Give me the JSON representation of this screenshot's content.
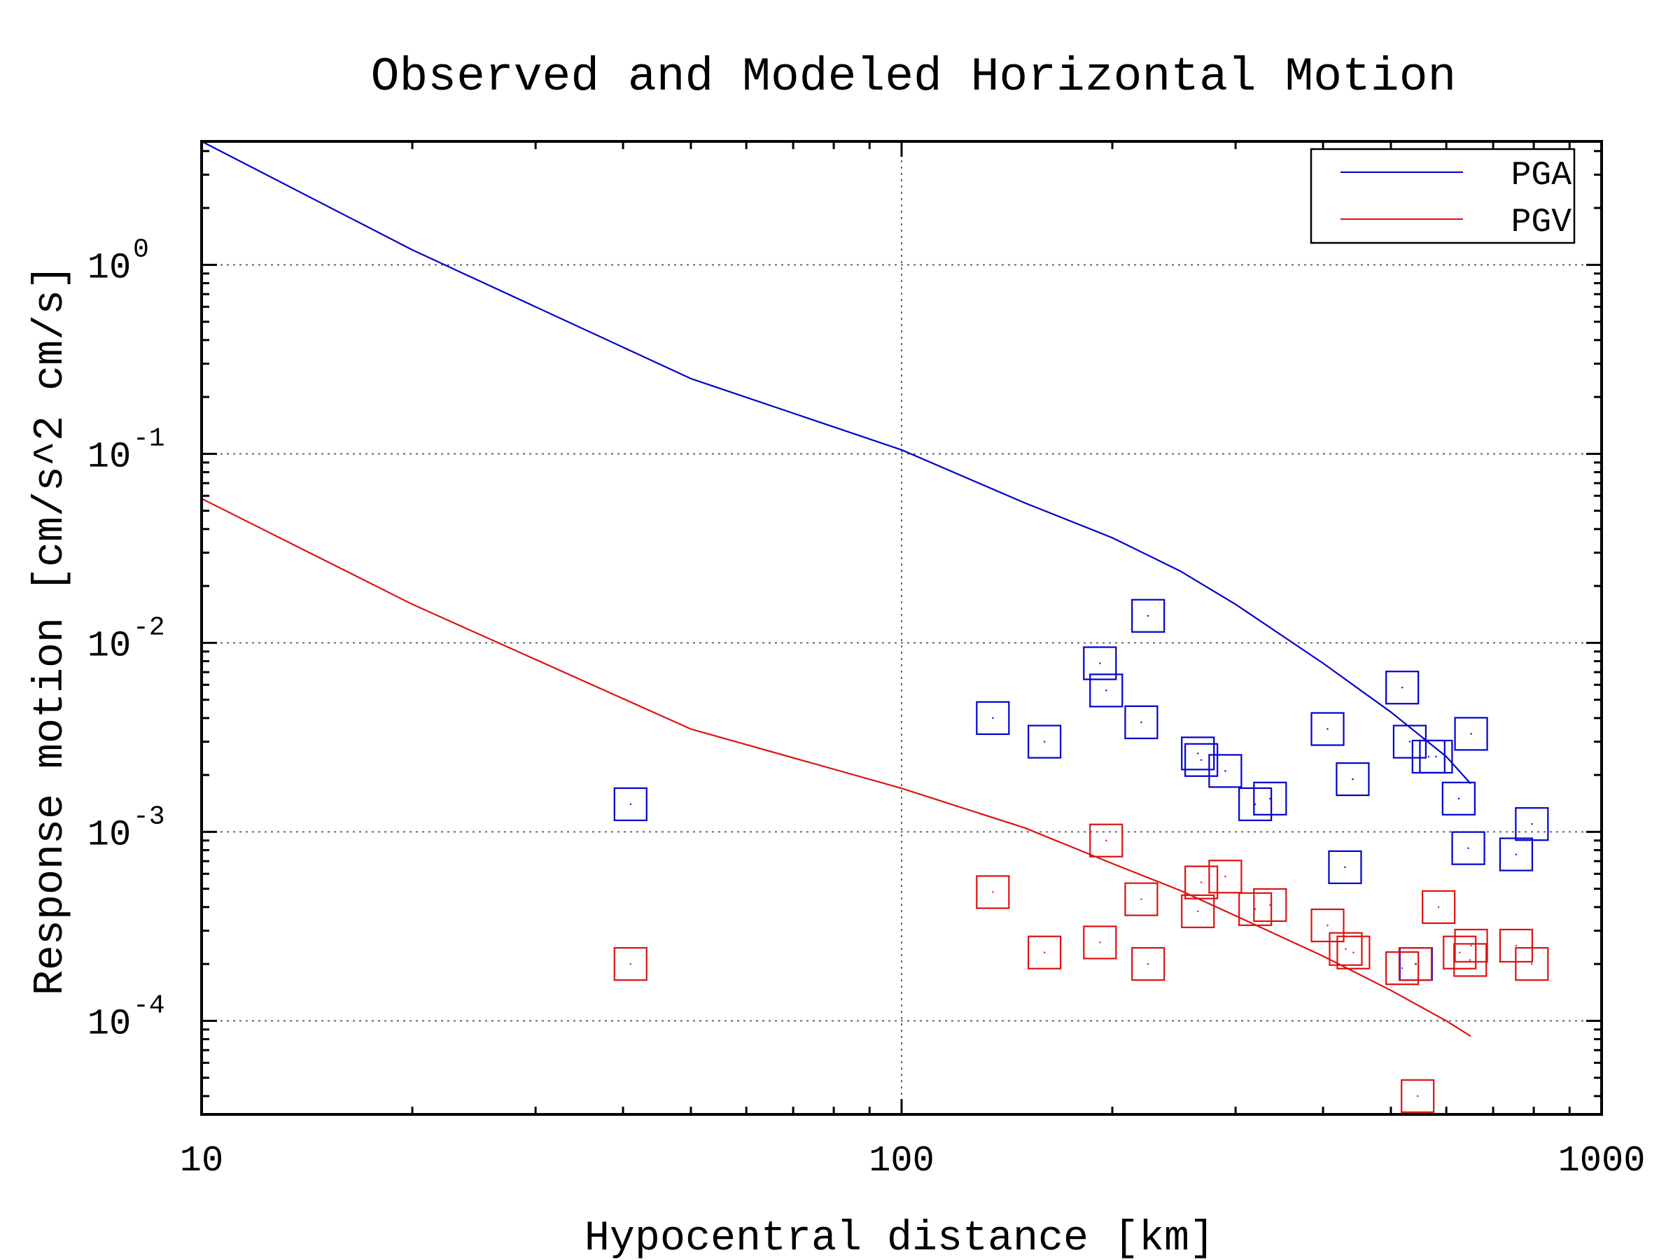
{
  "chart_data": {
    "type": "scatter",
    "title": "Observed and Modeled Horizontal Motion",
    "xlabel": "Hypocentral distance [km]",
    "ylabel": "Response motion [cm/s^2  cm/s]",
    "x_scale": "log",
    "y_scale": "log",
    "xlim": [
      10,
      1000
    ],
    "ylim": [
      3.2e-05,
      4.5
    ],
    "x_ticks": [
      10,
      100,
      1000
    ],
    "x_tick_labels": [
      "10",
      "100",
      "1000"
    ],
    "y_ticks": [
      0.0001,
      0.001,
      0.01,
      0.1,
      1
    ],
    "y_tick_exponents": [
      "-4",
      "-3",
      "-2",
      "-1",
      "0"
    ],
    "grid": true,
    "legend": "top-right",
    "colors": {
      "pga": "#0000cc",
      "pgv": "#dd1111"
    },
    "series": [
      {
        "name": "PGA",
        "kind": "line",
        "color": "#0000cc",
        "x": [
          10,
          20,
          50,
          100,
          150,
          200,
          250,
          300,
          400,
          500,
          600,
          650
        ],
        "y": [
          4.5,
          1.2,
          0.25,
          0.105,
          0.055,
          0.036,
          0.024,
          0.016,
          0.0078,
          0.0043,
          0.0025,
          0.0018
        ]
      },
      {
        "name": "PGV",
        "kind": "line",
        "color": "#dd1111",
        "x": [
          10,
          20,
          50,
          100,
          150,
          200,
          250,
          300,
          400,
          500,
          600,
          650
        ],
        "y": [
          0.058,
          0.016,
          0.0035,
          0.0017,
          0.00105,
          0.00068,
          0.00049,
          0.00036,
          0.00022,
          0.000145,
          0.0001,
          8.3e-05
        ]
      },
      {
        "kind": "points",
        "marker": "square",
        "color": "#0000cc",
        "x": [
          41,
          135,
          160,
          192,
          196,
          220,
          225,
          265,
          268,
          290,
          320,
          336,
          406,
          441,
          430,
          519,
          532,
          580,
          566,
          625,
          651,
          645,
          755,
          795,
          543
        ],
        "y": [
          0.0014,
          0.004,
          0.003,
          0.0078,
          0.0056,
          0.0038,
          0.0139,
          0.0026,
          0.0024,
          0.0021,
          0.0014,
          0.0015,
          0.0035,
          0.0019,
          0.00065,
          0.0058,
          0.003,
          0.0025,
          0.0025,
          0.0015,
          0.0033,
          0.00082,
          0.00076,
          0.0011,
          0.0002
        ]
      },
      {
        "kind": "points",
        "marker": "square",
        "color": "#dd1111",
        "x": [
          41,
          135,
          160,
          192,
          196,
          220,
          225,
          265,
          268,
          290,
          320,
          336,
          406,
          431,
          442,
          519,
          542,
          546,
          585,
          627,
          649,
          651,
          755,
          795
        ],
        "y": [
          0.0002,
          0.00048,
          0.00023,
          0.00026,
          0.0009,
          0.00044,
          0.0002,
          0.00038,
          0.00054,
          0.00058,
          0.00039,
          0.00041,
          0.00032,
          0.00024,
          0.00023,
          0.00019,
          0.0002,
          4e-05,
          0.0004,
          0.00023,
          0.00021,
          0.00025,
          0.00025,
          0.0002
        ]
      }
    ]
  }
}
